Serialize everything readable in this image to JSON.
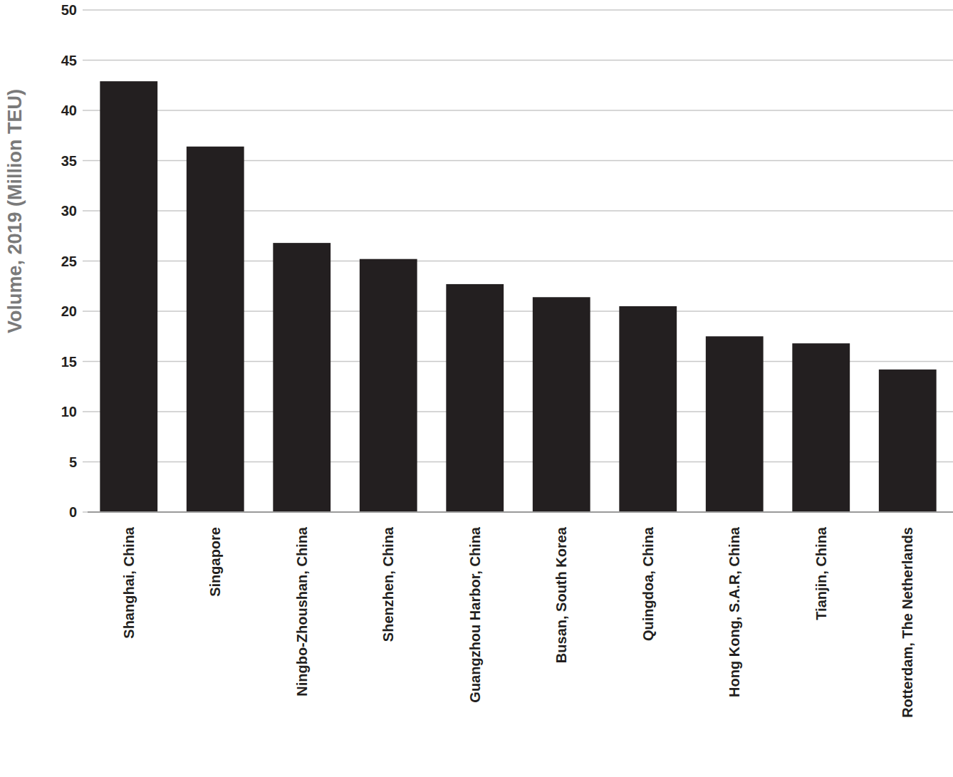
{
  "chart_data": {
    "type": "bar",
    "y_label": "Volume, 2019 (Million TEU)",
    "categories": [
      "Shanghai, China",
      "Singapore",
      "Ningbo-Zhoushan, China",
      "Shenzhen, China",
      "Guangzhou Harbor, China",
      "Busan, South Korea",
      "Quingdoa, China",
      "Hong Kong, S.A.R, China",
      "Tianjin, China",
      "Rotterdam, The Netherlands"
    ],
    "values": [
      42.9,
      36.4,
      26.8,
      25.2,
      22.7,
      21.4,
      20.5,
      17.5,
      16.8,
      14.2
    ],
    "color": "#231f20",
    "ylim": [
      0,
      50
    ],
    "yticks": [
      0,
      5,
      10,
      15,
      20,
      25,
      30,
      35,
      40,
      45,
      50
    ],
    "grid": true
  }
}
